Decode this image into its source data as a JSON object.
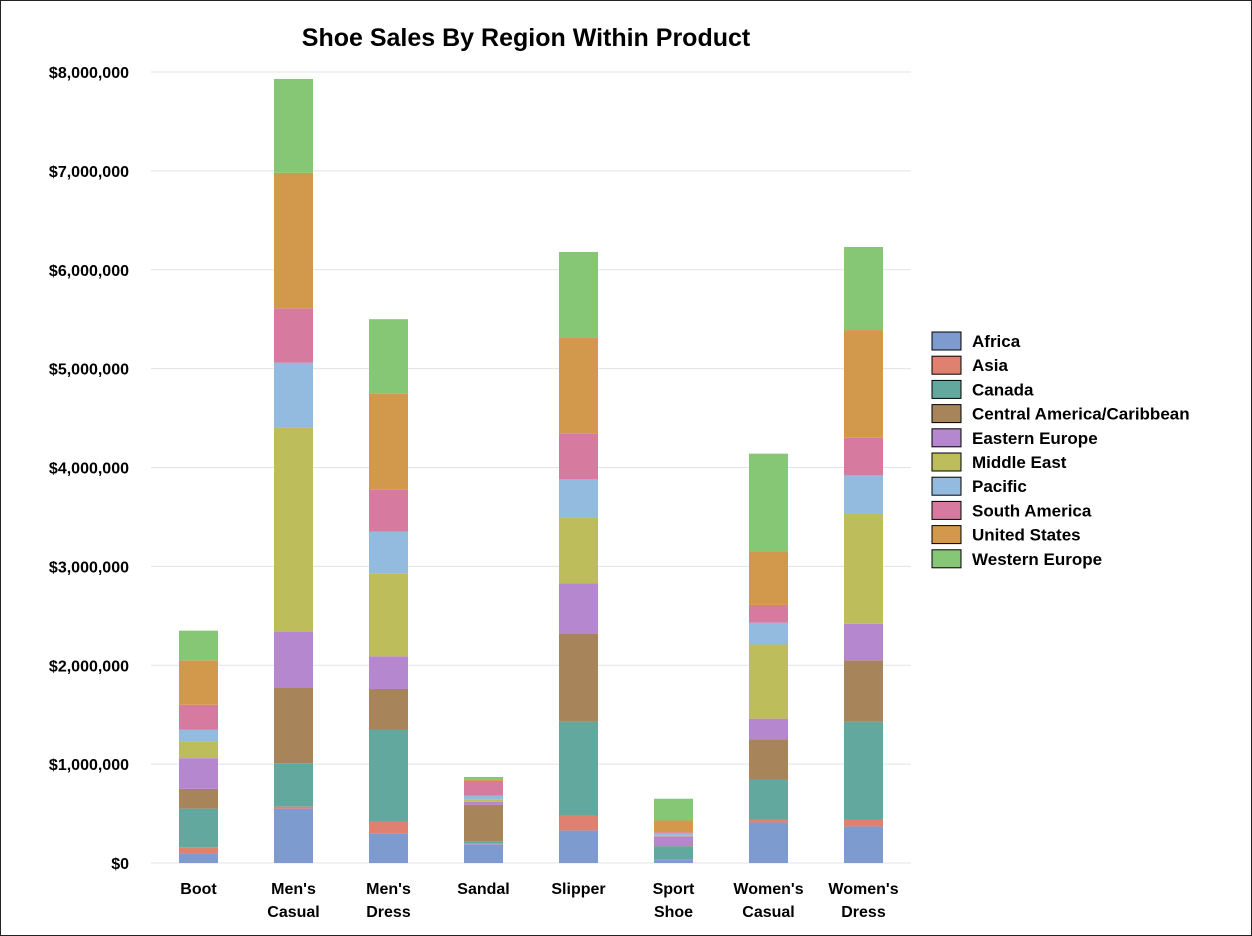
{
  "chart_data": {
    "type": "bar",
    "stacked": true,
    "title": "Shoe Sales By Region Within Product",
    "xlabel": "",
    "ylabel": "",
    "ylim": [
      0,
      8000000
    ],
    "yticks": [
      0,
      1000000,
      2000000,
      3000000,
      4000000,
      5000000,
      6000000,
      7000000,
      8000000
    ],
    "ytick_labels": [
      "$0",
      "$1,000,000",
      "$2,000,000",
      "$3,000,000",
      "$4,000,000",
      "$5,000,000",
      "$6,000,000",
      "$7,000,000",
      "$8,000,000"
    ],
    "grid": true,
    "legend_position": "right",
    "categories": [
      [
        "Boot"
      ],
      [
        "Men's",
        "Casual"
      ],
      [
        "Men's",
        "Dress"
      ],
      [
        "Sandal"
      ],
      [
        "Slipper"
      ],
      [
        "Sport",
        "Shoe"
      ],
      [
        "Women's",
        "Casual"
      ],
      [
        "Women's",
        "Dress"
      ]
    ],
    "series": [
      {
        "name": "Africa",
        "color": "#7E9BD0",
        "values": [
          100000,
          550000,
          300000,
          190000,
          330000,
          30000,
          410000,
          370000
        ]
      },
      {
        "name": "Asia",
        "color": "#E08070",
        "values": [
          60000,
          20000,
          120000,
          10000,
          150000,
          10000,
          30000,
          70000
        ]
      },
      {
        "name": "Canada",
        "color": "#63A89E",
        "values": [
          390000,
          440000,
          930000,
          20000,
          950000,
          130000,
          400000,
          990000
        ]
      },
      {
        "name": "Central America/Caribbean",
        "color": "#A78459",
        "values": [
          200000,
          760000,
          410000,
          370000,
          890000,
          10000,
          410000,
          620000
        ]
      },
      {
        "name": "Eastern Europe",
        "color": "#B587CF",
        "values": [
          310000,
          570000,
          330000,
          30000,
          510000,
          90000,
          210000,
          370000
        ]
      },
      {
        "name": "Middle East",
        "color": "#BDBE5B",
        "values": [
          170000,
          2060000,
          840000,
          20000,
          660000,
          10000,
          750000,
          1110000
        ]
      },
      {
        "name": "Pacific",
        "color": "#93BBE0",
        "values": [
          120000,
          660000,
          420000,
          40000,
          390000,
          20000,
          220000,
          390000
        ]
      },
      {
        "name": "South America",
        "color": "#D67B9F",
        "values": [
          250000,
          550000,
          430000,
          150000,
          460000,
          10000,
          180000,
          380000
        ]
      },
      {
        "name": "United States",
        "color": "#D2984C",
        "values": [
          450000,
          1370000,
          970000,
          10000,
          970000,
          120000,
          540000,
          1090000
        ]
      },
      {
        "name": "Western Europe",
        "color": "#86C775",
        "values": [
          300000,
          950000,
          750000,
          30000,
          870000,
          220000,
          990000,
          840000
        ]
      }
    ]
  }
}
